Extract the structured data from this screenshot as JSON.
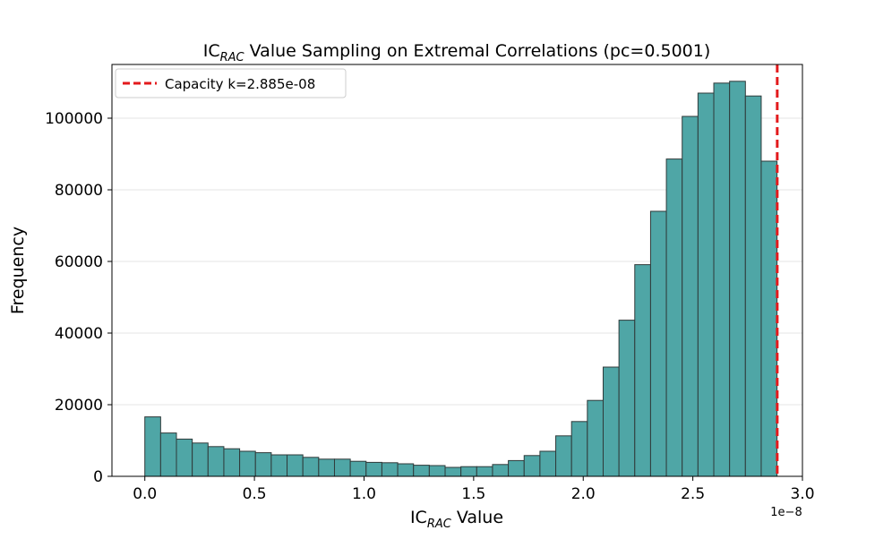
{
  "chart_data": {
    "type": "histogram",
    "title_main": "IC",
    "title_sub": "RAC",
    "title_rest": " Value Sampling on Extremal Correlations (pc=0.5001)",
    "xlabel_main": "IC",
    "xlabel_sub": "RAC",
    "xlabel_rest": " Value",
    "ylabel": "Frequency",
    "x_offset_text": "1e−8",
    "x_scale": 1e-08,
    "xlim": [
      -0.15,
      3.0
    ],
    "ylim": [
      0,
      115000
    ],
    "x_ticks": [
      0.0,
      0.5,
      1.0,
      1.5,
      2.0,
      2.5,
      3.0
    ],
    "x_tick_labels": [
      "0.0",
      "0.5",
      "1.0",
      "1.5",
      "2.0",
      "2.5",
      "3.0"
    ],
    "y_ticks": [
      0,
      20000,
      40000,
      60000,
      80000,
      100000
    ],
    "y_tick_labels": [
      "0",
      "20000",
      "40000",
      "60000",
      "80000",
      "100000"
    ],
    "grid": "horizontal",
    "bar_color": "#4fa6a6",
    "bar_edge_color": "#2f3a3a",
    "bin_start": 0.0,
    "bin_width": 0.0721,
    "values": [
      16600,
      12100,
      10400,
      9300,
      8300,
      7700,
      7000,
      6600,
      6000,
      6000,
      5300,
      4800,
      4800,
      4200,
      3900,
      3800,
      3500,
      3100,
      3000,
      2500,
      2700,
      2700,
      3300,
      4400,
      5800,
      7000,
      11300,
      15300,
      21200,
      30500,
      43600,
      59100,
      74000,
      88600,
      100500,
      107000,
      109800,
      110300,
      106200,
      88000
    ],
    "capacity": {
      "label": "Capacity k=2.885e-08",
      "value": 2.885,
      "color": "#e31a1c"
    },
    "legend_position": "top-left"
  }
}
